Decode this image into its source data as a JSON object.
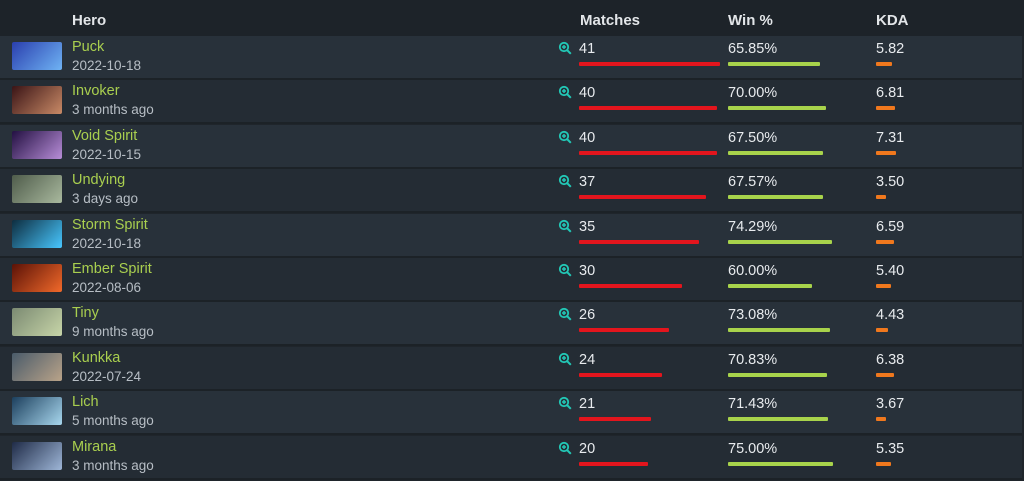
{
  "header": {
    "hero": "Hero",
    "matches": "Matches",
    "winrate": "Win %",
    "kda": "KDA"
  },
  "rows": [
    {
      "hero": "Puck",
      "date": "2022-10-18",
      "matches": "41",
      "matches_ratio": 1.0,
      "winrate": "65.85%",
      "winrate_ratio": 0.6585,
      "kda": "5.82",
      "kda_ratio": 0.16,
      "avatar_colors": [
        "#2a3fae",
        "#6fb3f4"
      ]
    },
    {
      "hero": "Invoker",
      "date": "3 months ago",
      "matches": "40",
      "matches_ratio": 0.976,
      "winrate": "70.00%",
      "winrate_ratio": 0.7,
      "kda": "6.81",
      "kda_ratio": 0.19,
      "avatar_colors": [
        "#3a1416",
        "#c98a66"
      ]
    },
    {
      "hero": "Void Spirit",
      "date": "2022-10-15",
      "matches": "40",
      "matches_ratio": 0.976,
      "winrate": "67.50%",
      "winrate_ratio": 0.675,
      "kda": "7.31",
      "kda_ratio": 0.2,
      "avatar_colors": [
        "#231042",
        "#b88ed8"
      ]
    },
    {
      "hero": "Undying",
      "date": "3 days ago",
      "matches": "37",
      "matches_ratio": 0.9,
      "winrate": "67.57%",
      "winrate_ratio": 0.6757,
      "kda": "3.50",
      "kda_ratio": 0.1,
      "avatar_colors": [
        "#4f5c4b",
        "#a9b99e"
      ]
    },
    {
      "hero": "Storm Spirit",
      "date": "2022-10-18",
      "matches": "35",
      "matches_ratio": 0.85,
      "winrate": "74.29%",
      "winrate_ratio": 0.7429,
      "kda": "6.59",
      "kda_ratio": 0.18,
      "avatar_colors": [
        "#0d2d3f",
        "#48c7ff"
      ]
    },
    {
      "hero": "Ember Spirit",
      "date": "2022-08-06",
      "matches": "30",
      "matches_ratio": 0.73,
      "winrate": "60.00%",
      "winrate_ratio": 0.6,
      "kda": "5.40",
      "kda_ratio": 0.15,
      "avatar_colors": [
        "#5b1207",
        "#f1692a"
      ]
    },
    {
      "hero": "Tiny",
      "date": "9 months ago",
      "matches": "26",
      "matches_ratio": 0.635,
      "winrate": "73.08%",
      "winrate_ratio": 0.7308,
      "kda": "4.43",
      "kda_ratio": 0.12,
      "avatar_colors": [
        "#7b8a72",
        "#c7d5a8"
      ]
    },
    {
      "hero": "Kunkka",
      "date": "2022-07-24",
      "matches": "24",
      "matches_ratio": 0.59,
      "winrate": "70.83%",
      "winrate_ratio": 0.7083,
      "kda": "6.38",
      "kda_ratio": 0.18,
      "avatar_colors": [
        "#4a5b6a",
        "#b9a389"
      ]
    },
    {
      "hero": "Lich",
      "date": "5 months ago",
      "matches": "21",
      "matches_ratio": 0.51,
      "winrate": "71.43%",
      "winrate_ratio": 0.7143,
      "kda": "3.67",
      "kda_ratio": 0.1,
      "avatar_colors": [
        "#1c3f5d",
        "#a8d7ee"
      ]
    },
    {
      "hero": "Mirana",
      "date": "3 months ago",
      "matches": "20",
      "matches_ratio": 0.49,
      "winrate": "75.00%",
      "winrate_ratio": 0.75,
      "kda": "5.35",
      "kda_ratio": 0.15,
      "avatar_colors": [
        "#1f2b47",
        "#9eb6d7"
      ]
    }
  ],
  "colors": {
    "hero_name": "#a9cf4f",
    "matches_bar": "#e3151d",
    "winrate_bar": "#a8d34b",
    "kda_bar": "#f0781d",
    "zoom_icon": "#22c8b6"
  },
  "icons": {
    "zoom": "magnifier-plus-icon"
  }
}
